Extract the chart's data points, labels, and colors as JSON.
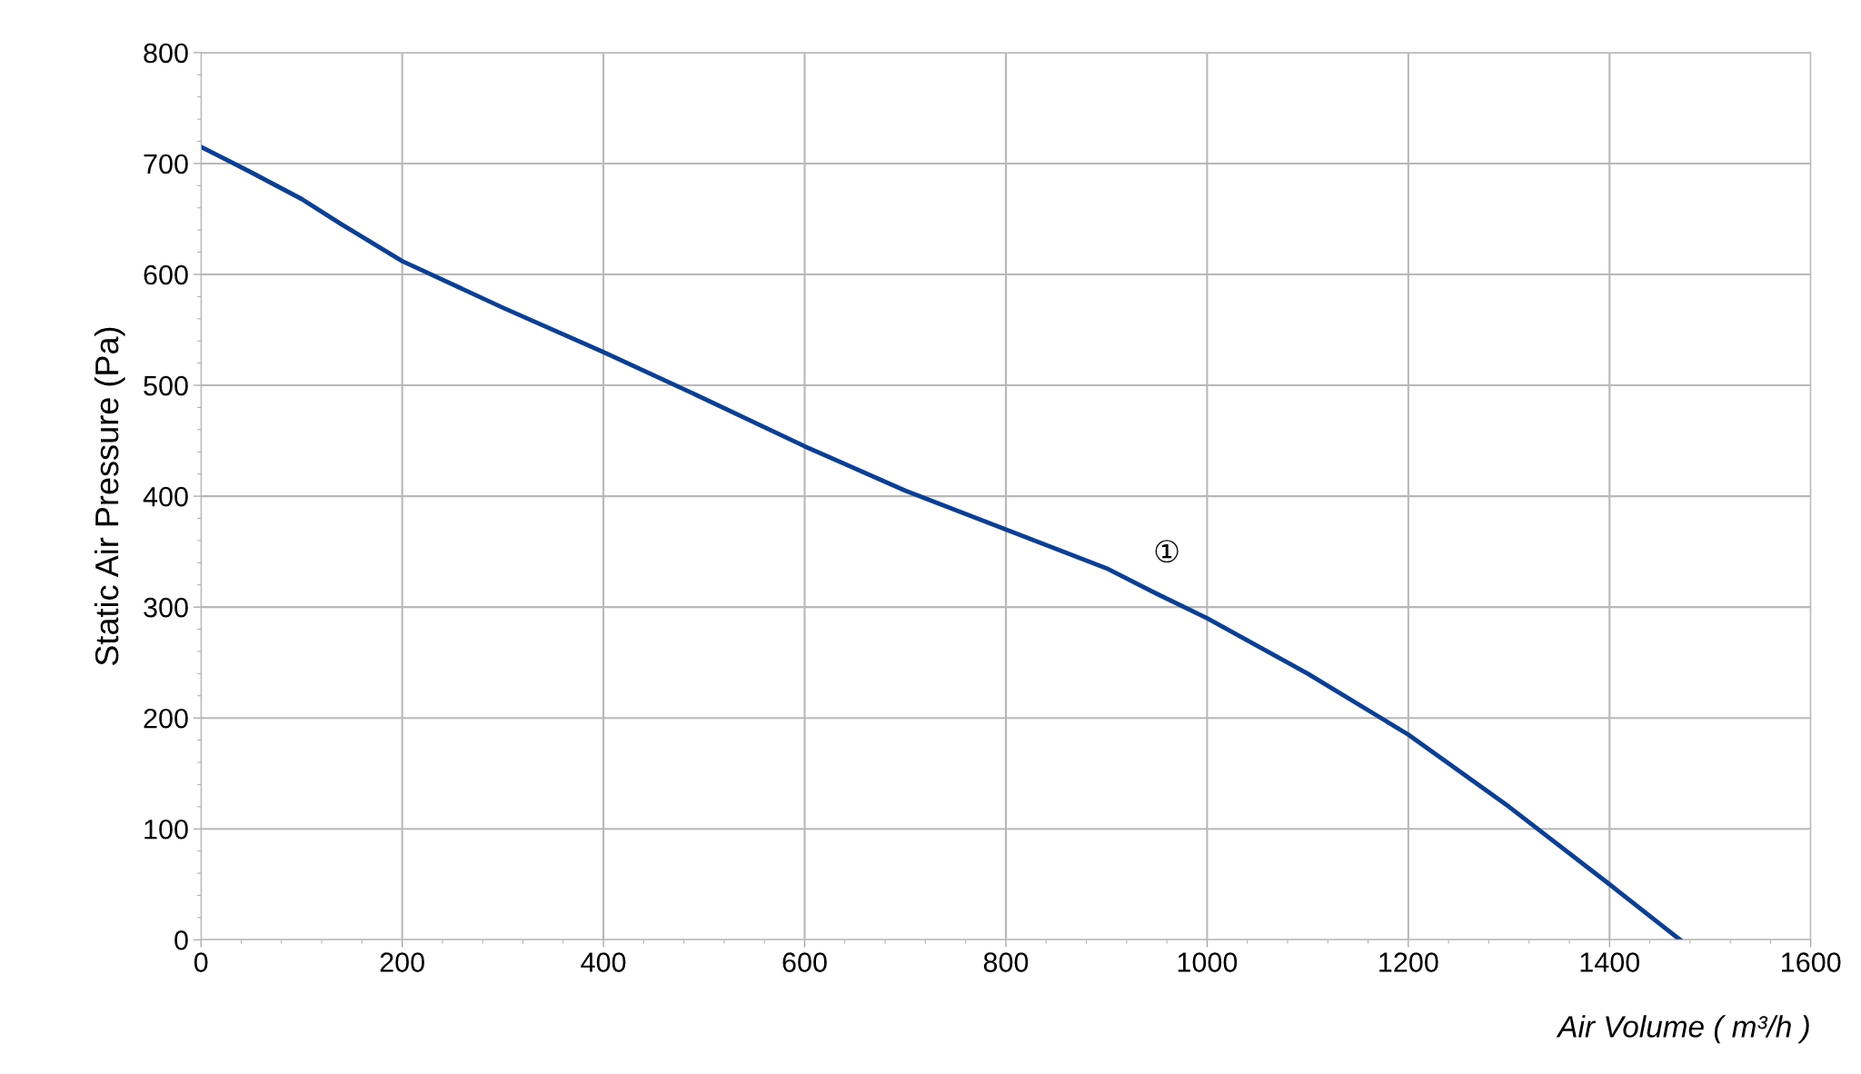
{
  "chart_data": {
    "type": "line",
    "xlabel": "Air Volume ( m³/h )",
    "ylabel": "Static Air Pressure (Pa)",
    "x": [
      0,
      50,
      100,
      140,
      200,
      300,
      400,
      500,
      600,
      700,
      800,
      900,
      950,
      1000,
      1100,
      1200,
      1300,
      1400,
      1470
    ],
    "series": [
      {
        "color": "#0e3f8f",
        "values": [
          715,
          692,
          668,
          645,
          612,
          570,
          530,
          488,
          445,
          405,
          370,
          335,
          312,
          290,
          240,
          185,
          120,
          50,
          0
        ]
      }
    ],
    "xlim": [
      0,
      1600
    ],
    "ylim": [
      0,
      800
    ],
    "xticks": [
      0,
      200,
      400,
      600,
      800,
      1000,
      1200,
      1400,
      1600
    ],
    "yticks": [
      0,
      100,
      200,
      300,
      400,
      500,
      600,
      700,
      800
    ],
    "grid": true,
    "marker": "none",
    "line_style": "solid",
    "annotations": [
      "①"
    ]
  }
}
